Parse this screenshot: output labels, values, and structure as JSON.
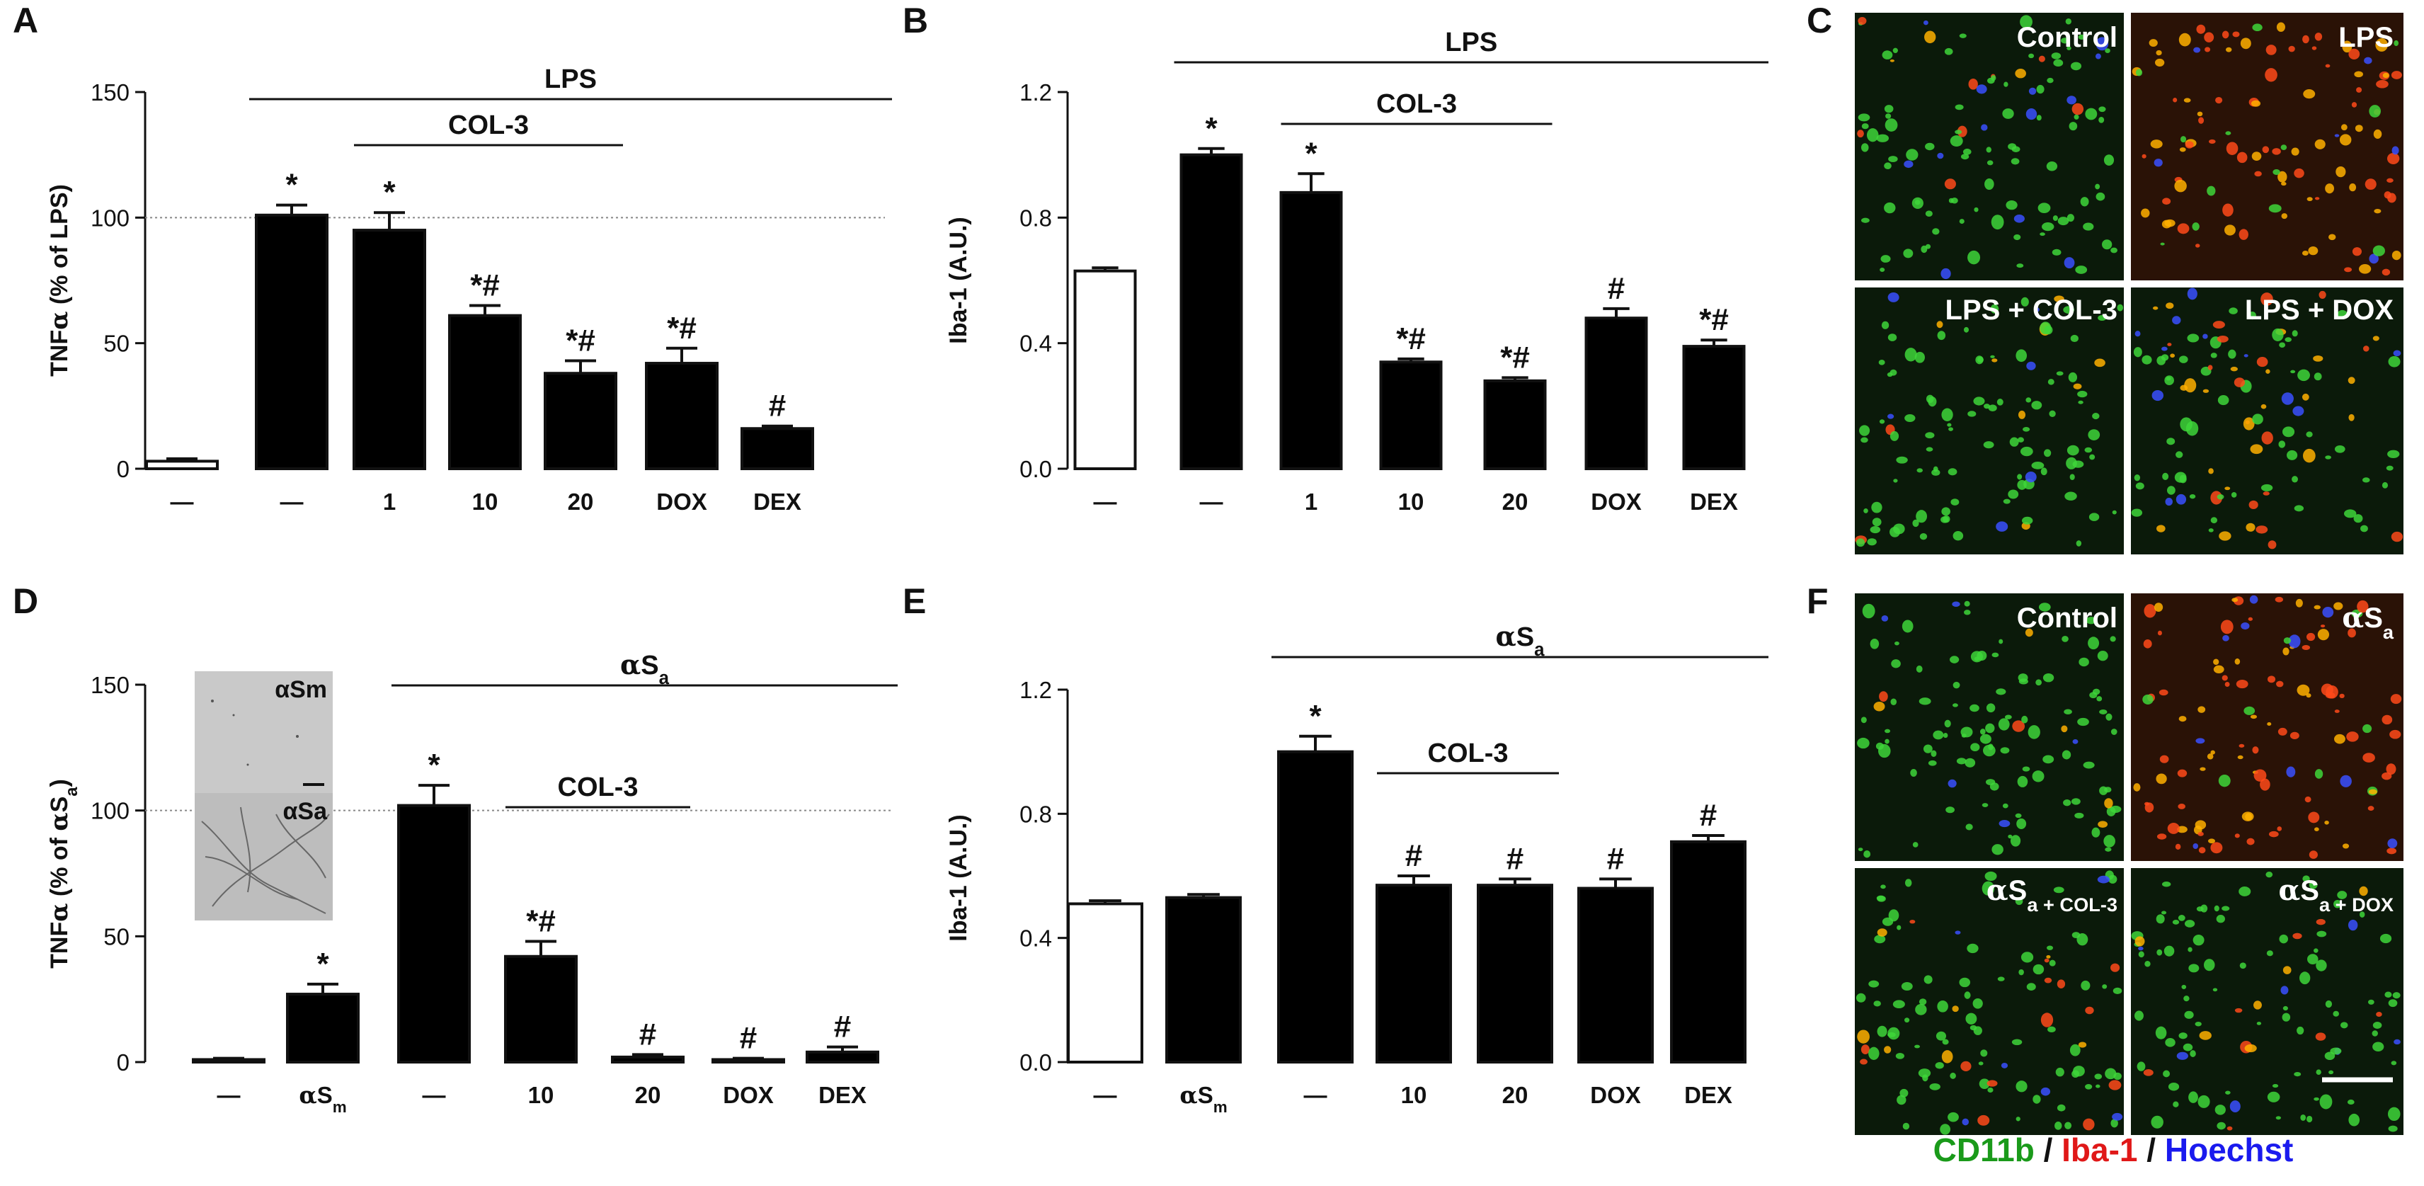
{
  "panel_letters": [
    "A",
    "B",
    "C",
    "D",
    "E",
    "F"
  ],
  "chart_data": [
    {
      "id": "A",
      "type": "bar",
      "ylabel_prefix": "TNF",
      "ylabel_greek": "α",
      "ylabel_suffix": " (% of LPS)",
      "ylim": [
        0,
        150
      ],
      "yticks": [
        "0",
        "50",
        "100",
        "150"
      ],
      "ref_line": 100,
      "categories": [
        "—",
        "—",
        "1",
        "10",
        "20",
        "DOX",
        "DEX"
      ],
      "values": [
        3,
        101,
        95,
        61,
        38,
        42,
        16
      ],
      "errors": [
        1,
        4,
        7,
        4,
        5,
        6,
        1
      ],
      "filled": [
        false,
        true,
        true,
        true,
        true,
        true,
        true
      ],
      "annotations": [
        "",
        "*",
        "*",
        "*#",
        "*#",
        "*#",
        "#"
      ],
      "groups": [
        {
          "label": "LPS",
          "from": 1,
          "to": 6,
          "level": 0
        },
        {
          "label": "COL-3",
          "from": 2,
          "to": 4,
          "level": 1
        }
      ]
    },
    {
      "id": "B",
      "type": "bar",
      "ylabel": "Iba-1 (A.U.)",
      "ylim": [
        0,
        1.2
      ],
      "yticks": [
        "0.0",
        "0.4",
        "0.8",
        "1.2"
      ],
      "categories": [
        "—",
        "—",
        "1",
        "10",
        "20",
        "DOX",
        "DEX"
      ],
      "values": [
        0.63,
        1.0,
        0.88,
        0.34,
        0.28,
        0.48,
        0.39
      ],
      "errors": [
        0.01,
        0.02,
        0.06,
        0.01,
        0.01,
        0.03,
        0.02
      ],
      "filled": [
        false,
        true,
        true,
        true,
        true,
        true,
        true
      ],
      "annotations": [
        "",
        "*",
        "*",
        "*#",
        "*#",
        "#",
        "*#"
      ],
      "groups": [
        {
          "label": "LPS",
          "from": 1,
          "to": 6,
          "level": 0
        },
        {
          "label": "COL-3",
          "from": 2,
          "to": 4,
          "level": 1
        }
      ]
    },
    {
      "id": "D",
      "type": "bar",
      "ylabel_prefix": "TNF",
      "ylabel_greek": "α",
      "ylabel_suffix": " (% of ",
      "ylabel_greek2": "α",
      "ylabel_s": "S",
      "ylabel_sub": "a",
      "ylabel_end": ")",
      "ylim": [
        0,
        150
      ],
      "yticks": [
        "0",
        "50",
        "100",
        "150"
      ],
      "ref_line": 100,
      "categories": [
        "—",
        "αS_m",
        "—",
        "10",
        "20",
        "DOX",
        "DEX"
      ],
      "values": [
        1,
        27,
        102,
        42,
        2,
        1,
        4
      ],
      "errors": [
        0.5,
        4,
        8,
        6,
        1,
        0.5,
        2
      ],
      "filled": [
        false,
        true,
        true,
        true,
        true,
        true,
        true
      ],
      "annotations": [
        "",
        "*",
        "*",
        "*#",
        "#",
        "#",
        "#"
      ],
      "groups": [
        {
          "label": "αS_a",
          "from": 2,
          "to": 6,
          "level": 0
        },
        {
          "label": "COL-3",
          "from": 3,
          "to": 4,
          "level": 1
        }
      ],
      "inset_labels": [
        "αSm",
        "αSa"
      ]
    },
    {
      "id": "E",
      "type": "bar",
      "ylabel": "Iba-1 (A.U.)",
      "ylim": [
        0,
        1.2
      ],
      "yticks": [
        "0.0",
        "0.4",
        "0.8",
        "1.2"
      ],
      "categories": [
        "—",
        "αS_m",
        "—",
        "10",
        "20",
        "DOX",
        "DEX"
      ],
      "values": [
        0.51,
        0.53,
        1.0,
        0.57,
        0.57,
        0.56,
        0.71
      ],
      "errors": [
        0.01,
        0.01,
        0.05,
        0.03,
        0.02,
        0.03,
        0.02
      ],
      "filled": [
        false,
        true,
        true,
        true,
        true,
        true,
        true
      ],
      "annotations": [
        "",
        "",
        "*",
        "#",
        "#",
        "#",
        "#"
      ],
      "groups": [
        {
          "label": "αS_a",
          "from": 2,
          "to": 6,
          "level": 0
        },
        {
          "label": "COL-3",
          "from": 3,
          "to": 4,
          "level": 1
        }
      ]
    }
  ],
  "images": {
    "C": [
      "Control",
      "LPS",
      "LPS + COL-3",
      "LPS + DOX"
    ],
    "F": [
      "Control",
      "αS_a",
      "αS_a + COL-3",
      "αS_a + DOX"
    ]
  },
  "legend": {
    "cd11b": "CD11b",
    "sep1": " / ",
    "iba1": "Iba-1",
    "sep2": " / ",
    "hoechst": "Hoechst",
    "colors": {
      "cd11b": "#1a9a1a",
      "iba1": "#e01818",
      "hoechst": "#1a1aee"
    }
  }
}
